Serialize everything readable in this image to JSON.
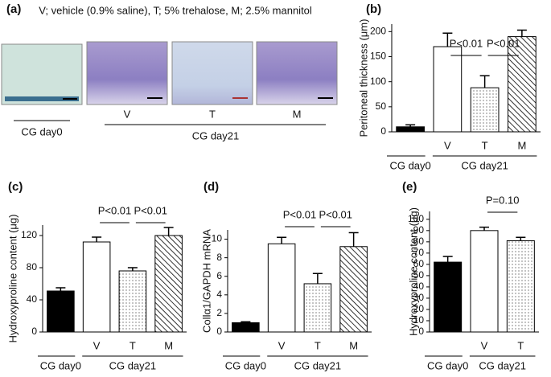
{
  "panel_a": {
    "label": "(a)",
    "caption": "V; vehicle (0.9% saline), T; 5% trehalose, M; 2.5% mannitol",
    "image_labels": [
      "V",
      "T",
      "M"
    ],
    "group_labels": [
      "CG day0",
      "CG day21"
    ]
  },
  "chart_data": [
    {
      "type": "bar",
      "label": "(b)",
      "y_label": "Peritoneal thickness (μm)",
      "categories": [
        null,
        "V",
        "T",
        "M"
      ],
      "group_labels": [
        "CG day0",
        "CG day21"
      ],
      "values": [
        10,
        170,
        88,
        190
      ],
      "errors": [
        4,
        27,
        24,
        13
      ],
      "bar_styles": [
        "solid",
        "open",
        "dotted",
        "hatched"
      ],
      "color": "#000000",
      "ylim": [
        0,
        215
      ],
      "yticks": [
        0,
        50,
        100,
        150,
        200
      ],
      "annotations": [
        "P<0.01",
        "P<0.01"
      ]
    },
    {
      "type": "bar",
      "label": "(c)",
      "y_label": "Hydroxyproline content (μg)",
      "categories": [
        null,
        "V",
        "T",
        "M"
      ],
      "group_labels": [
        "CG day0",
        "CG day21"
      ],
      "values": [
        51,
        112,
        76,
        120
      ],
      "errors": [
        4,
        6,
        4,
        10
      ],
      "bar_styles": [
        "solid",
        "open",
        "dotted",
        "hatched"
      ],
      "color": "#000000",
      "ylim": [
        0,
        133
      ],
      "yticks": [
        0,
        40,
        80,
        120
      ],
      "annotations": [
        "P<0.01",
        "P<0.01"
      ]
    },
    {
      "type": "bar",
      "label": "(d)",
      "y_label": "Collα1/GAPDH mRNA",
      "categories": [
        null,
        "V",
        "T",
        "M"
      ],
      "group_labels": [
        "CG day0",
        "CG day21"
      ],
      "values": [
        1.0,
        9.5,
        5.2,
        9.2
      ],
      "errors": [
        0.1,
        0.7,
        1.1,
        1.5
      ],
      "bar_styles": [
        "solid",
        "open",
        "dotted",
        "hatched"
      ],
      "color": "#000000",
      "ylim": [
        0,
        11
      ],
      "yticks": [
        0,
        2,
        4,
        6,
        8,
        10
      ],
      "annotations": [
        "P<0.01",
        "P<0.01"
      ]
    },
    {
      "type": "bar",
      "label": "(e)",
      "y_label": "Hydroxyproline content (μg)",
      "categories": [
        null,
        "V",
        "T"
      ],
      "group_labels": [
        "CG day0",
        "CG day21"
      ],
      "values": [
        62,
        90,
        81
      ],
      "errors": [
        5,
        3,
        3
      ],
      "bar_styles": [
        "solid",
        "open",
        "dotted"
      ],
      "color": "#000000",
      "ylim": [
        0,
        107
      ],
      "yticks": [
        0,
        10,
        20,
        30,
        40,
        50,
        60,
        70,
        80,
        90,
        100
      ],
      "annotations": [
        "P=0.10"
      ]
    }
  ]
}
